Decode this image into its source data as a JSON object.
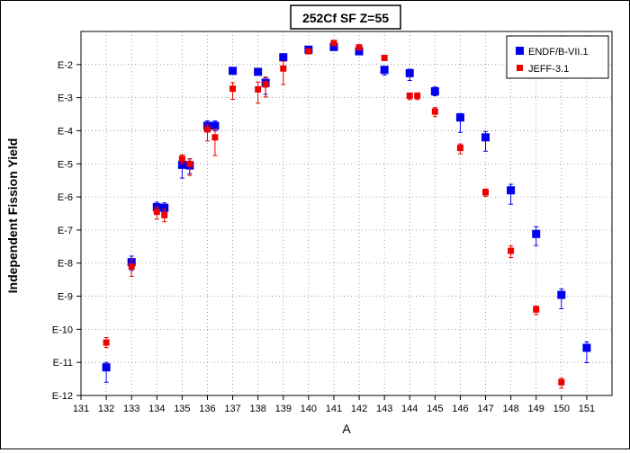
{
  "chart_data": {
    "type": "scatter",
    "title": "252Cf SF Z=55",
    "xlabel": "A",
    "ylabel": "Independent Fission Yield",
    "xlim": [
      131,
      152
    ],
    "ylim_log10": [
      -12,
      -1
    ],
    "y_scale": "log",
    "grid": true,
    "legend_position": "top-right",
    "x_ticks": [
      "131",
      "132",
      "133",
      "134",
      "135",
      "136",
      "137",
      "138",
      "139",
      "140",
      "141",
      "142",
      "143",
      "144",
      "145",
      "146",
      "147",
      "148",
      "149",
      "150",
      "151"
    ],
    "y_ticks": [
      {
        "label": "E-2",
        "exp": -2
      },
      {
        "label": "E-3",
        "exp": -3
      },
      {
        "label": "E-4",
        "exp": -4
      },
      {
        "label": "E-5",
        "exp": -5
      },
      {
        "label": "E-6",
        "exp": -6
      },
      {
        "label": "E-7",
        "exp": -7
      },
      {
        "label": "E-8",
        "exp": -8
      },
      {
        "label": "E-9",
        "exp": -9
      },
      {
        "label": "E-10",
        "exp": -10
      },
      {
        "label": "E-11",
        "exp": -11
      },
      {
        "label": "E-12",
        "exp": -12
      }
    ],
    "series": [
      {
        "name": "ENDF/B-VII.1",
        "color": "#0000ee",
        "marker": "square-large",
        "points": [
          {
            "x": 132,
            "exp": -11.15,
            "err_lo": 0.45,
            "err_hi": 0.15
          },
          {
            "x": 133,
            "exp": -7.97,
            "err_lo": 0.25,
            "err_hi": 0.18
          },
          {
            "x": 134,
            "exp": -6.31,
            "err_lo": 0.15,
            "err_hi": 0.15
          },
          {
            "x": 134.3,
            "exp": -6.33,
            "err_lo": 0.15,
            "err_hi": 0.15
          },
          {
            "x": 135,
            "exp": -5.03,
            "err_lo": 0.4,
            "err_hi": 0.1
          },
          {
            "x": 135.3,
            "exp": -5.05,
            "err_lo": 0.25,
            "err_hi": 0.2
          },
          {
            "x": 136,
            "exp": -3.85,
            "err_lo": 0.15,
            "err_hi": 0.15
          },
          {
            "x": 136.3,
            "exp": -3.85,
            "err_lo": 0.15,
            "err_hi": 0.15
          },
          {
            "x": 137,
            "exp": -2.19,
            "err_lo": 0.08,
            "err_hi": 0.04
          },
          {
            "x": 138,
            "exp": -2.22,
            "err_lo": 0.04,
            "err_hi": 0.04
          },
          {
            "x": 138.3,
            "exp": -2.55,
            "err_lo": 0.35,
            "err_hi": 0.15
          },
          {
            "x": 139,
            "exp": -1.78,
            "err_lo": 0.04,
            "err_hi": 0.04
          },
          {
            "x": 140,
            "exp": -1.55,
            "err_lo": 0.03,
            "err_hi": 0.03
          },
          {
            "x": 141,
            "exp": -1.47,
            "err_lo": 0.03,
            "err_hi": 0.03
          },
          {
            "x": 142,
            "exp": -1.6,
            "err_lo": 0.03,
            "err_hi": 0.03
          },
          {
            "x": 143,
            "exp": -2.16,
            "err_lo": 0.16,
            "err_hi": 0.07
          },
          {
            "x": 144,
            "exp": -2.26,
            "err_lo": 0.22,
            "err_hi": 0.12
          },
          {
            "x": 145,
            "exp": -2.81,
            "err_lo": 0.13,
            "err_hi": 0.13
          },
          {
            "x": 146,
            "exp": -3.6,
            "err_lo": 0.45,
            "err_hi": 0.12
          },
          {
            "x": 147,
            "exp": -4.2,
            "err_lo": 0.42,
            "err_hi": 0.18
          },
          {
            "x": 148,
            "exp": -5.8,
            "err_lo": 0.42,
            "err_hi": 0.18
          },
          {
            "x": 149,
            "exp": -7.12,
            "err_lo": 0.35,
            "err_hi": 0.22
          },
          {
            "x": 150,
            "exp": -8.96,
            "err_lo": 0.42,
            "err_hi": 0.18
          },
          {
            "x": 151,
            "exp": -10.56,
            "err_lo": 0.45,
            "err_hi": 0.18
          }
        ]
      },
      {
        "name": "JEFF-3.1",
        "color": "#ee0000",
        "marker": "square-small",
        "points": [
          {
            "x": 132,
            "exp": -10.4,
            "err_lo": 0.15,
            "err_hi": 0.15
          },
          {
            "x": 133,
            "exp": -8.1,
            "err_lo": 0.3,
            "err_hi": 0.2
          },
          {
            "x": 134,
            "exp": -6.45,
            "err_lo": 0.22,
            "err_hi": 0.15
          },
          {
            "x": 134.3,
            "exp": -6.55,
            "err_lo": 0.2,
            "err_hi": 0.18
          },
          {
            "x": 135,
            "exp": -4.85,
            "err_lo": 0.15,
            "err_hi": 0.12
          },
          {
            "x": 135.3,
            "exp": -5.0,
            "err_lo": 0.35,
            "err_hi": 0.15
          },
          {
            "x": 136,
            "exp": -3.96,
            "err_lo": 0.35,
            "err_hi": 0.15
          },
          {
            "x": 136.3,
            "exp": -4.2,
            "err_lo": 0.55,
            "err_hi": 0.25
          },
          {
            "x": 137,
            "exp": -2.73,
            "err_lo": 0.32,
            "err_hi": 0.18
          },
          {
            "x": 138,
            "exp": -2.75,
            "err_lo": 0.42,
            "err_hi": 0.22
          },
          {
            "x": 138.3,
            "exp": -2.6,
            "err_lo": 0.38,
            "err_hi": 0.22
          },
          {
            "x": 139,
            "exp": -2.12,
            "err_lo": 0.48,
            "err_hi": 0.22
          },
          {
            "x": 140,
            "exp": -1.6,
            "err_lo": 0.03,
            "err_hi": 0.03
          },
          {
            "x": 141,
            "exp": -1.35,
            "err_lo": 0.03,
            "err_hi": 0.03
          },
          {
            "x": 142,
            "exp": -1.48,
            "err_lo": 0.03,
            "err_hi": 0.03
          },
          {
            "x": 143,
            "exp": -1.8,
            "err_lo": 0.03,
            "err_hi": 0.03
          },
          {
            "x": 144,
            "exp": -2.94,
            "err_lo": 0.12,
            "err_hi": 0.08
          },
          {
            "x": 144.3,
            "exp": -2.94,
            "err_lo": 0.12,
            "err_hi": 0.08
          },
          {
            "x": 145,
            "exp": -3.42,
            "err_lo": 0.15,
            "err_hi": 0.12
          },
          {
            "x": 146,
            "exp": -4.52,
            "err_lo": 0.18,
            "err_hi": 0.12
          },
          {
            "x": 147,
            "exp": -5.86,
            "err_lo": 0.12,
            "err_hi": 0.1
          },
          {
            "x": 148,
            "exp": -7.63,
            "err_lo": 0.2,
            "err_hi": 0.15
          },
          {
            "x": 149,
            "exp": -9.4,
            "err_lo": 0.15,
            "err_hi": 0.1
          },
          {
            "x": 150,
            "exp": -11.6,
            "err_lo": 0.18,
            "err_hi": 0.12
          }
        ]
      }
    ]
  }
}
